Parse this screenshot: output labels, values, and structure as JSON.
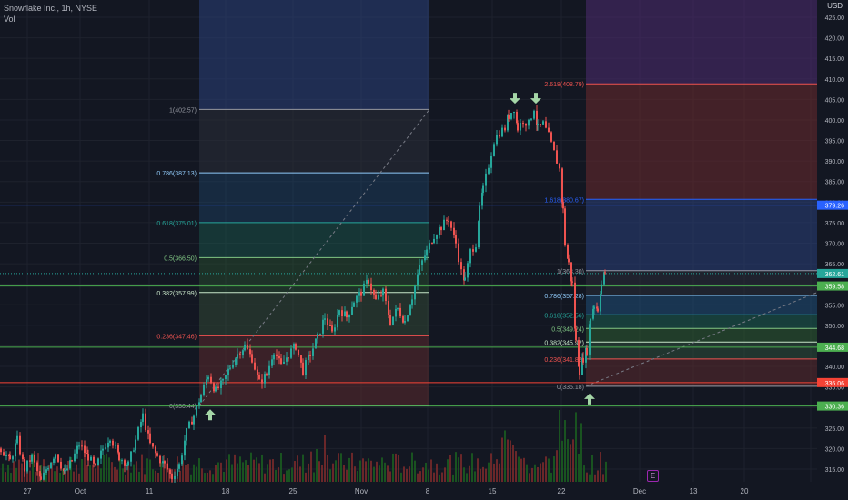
{
  "header": {
    "symbol_line": "Snowflake Inc., 1h, NYSE",
    "volume_label": "Vol"
  },
  "currency_label": "USD",
  "earnings_badge": "E",
  "chart_data": {
    "type": "candlestick",
    "title": "Snowflake Inc., 1h, NYSE",
    "x_ticks": [
      "27",
      "Oct",
      "11",
      "18",
      "25",
      "Nov",
      "8",
      "15",
      "22",
      "Dec",
      "13",
      "20"
    ],
    "y_ticks": [
      315,
      320,
      325,
      330,
      335,
      340,
      345,
      350,
      355,
      360,
      365,
      370,
      375,
      380,
      385,
      390,
      395,
      400,
      405,
      410,
      415,
      420,
      425
    ],
    "ylim": [
      311.5,
      428
    ],
    "colors": {
      "up": "#26a69a",
      "down": "#ef5350",
      "background": "#131722",
      "grid": "#1e222d"
    },
    "price_path": [
      [
        0,
        320
      ],
      [
        10,
        317
      ],
      [
        18,
        322
      ],
      [
        26,
        315
      ],
      [
        34,
        318
      ],
      [
        44,
        312
      ],
      [
        52,
        316
      ],
      [
        60,
        319
      ],
      [
        70,
        314
      ],
      [
        78,
        317
      ],
      [
        86,
        321
      ],
      [
        96,
        318
      ],
      [
        104,
        315
      ],
      [
        112,
        320
      ],
      [
        120,
        323
      ],
      [
        130,
        318
      ],
      [
        140,
        316
      ],
      [
        148,
        322
      ],
      [
        156,
        328
      ],
      [
        164,
        321
      ],
      [
        172,
        318
      ],
      [
        180,
        316
      ],
      [
        188,
        313
      ],
      [
        196,
        316
      ],
      [
        204,
        324
      ],
      [
        212,
        328
      ],
      [
        220,
        333
      ],
      [
        228,
        338
      ],
      [
        236,
        334
      ],
      [
        244,
        336
      ],
      [
        252,
        340
      ],
      [
        260,
        343
      ],
      [
        268,
        345
      ],
      [
        276,
        342
      ],
      [
        284,
        336
      ],
      [
        292,
        338
      ],
      [
        300,
        344
      ],
      [
        308,
        340
      ],
      [
        316,
        343
      ],
      [
        324,
        345
      ],
      [
        332,
        339
      ],
      [
        340,
        343
      ],
      [
        348,
        347
      ],
      [
        356,
        352
      ],
      [
        364,
        348
      ],
      [
        372,
        354
      ],
      [
        380,
        352
      ],
      [
        388,
        356
      ],
      [
        396,
        358
      ],
      [
        404,
        361
      ],
      [
        412,
        356
      ],
      [
        420,
        358
      ],
      [
        428,
        351
      ],
      [
        436,
        354
      ],
      [
        444,
        351
      ],
      [
        452,
        357
      ],
      [
        460,
        364
      ],
      [
        468,
        368
      ],
      [
        476,
        372
      ],
      [
        484,
        374
      ],
      [
        492,
        376
      ],
      [
        500,
        370
      ],
      [
        506,
        363
      ],
      [
        510,
        361
      ],
      [
        516,
        368
      ],
      [
        522,
        370
      ],
      [
        526,
        378
      ],
      [
        530,
        383
      ],
      [
        536,
        389
      ],
      [
        542,
        395
      ],
      [
        548,
        397
      ],
      [
        554,
        398
      ],
      [
        558,
        401
      ],
      [
        564,
        403
      ],
      [
        568,
        398
      ],
      [
        574,
        400
      ],
      [
        580,
        399
      ],
      [
        586,
        403
      ],
      [
        590,
        398
      ],
      [
        596,
        399
      ],
      [
        602,
        396
      ],
      [
        608,
        392
      ],
      [
        614,
        388
      ],
      [
        618,
        378
      ],
      [
        620,
        370
      ],
      [
        624,
        365
      ],
      [
        628,
        360
      ],
      [
        632,
        346
      ],
      [
        636,
        339
      ],
      [
        640,
        342
      ],
      [
        644,
        344
      ],
      [
        648,
        352
      ],
      [
        652,
        355
      ],
      [
        656,
        354
      ],
      [
        660,
        360
      ],
      [
        664,
        363
      ],
      [
        666,
        362.61
      ]
    ],
    "volume_bars": "approximate, rendered as green/red histogram at bottom",
    "fib_retracement_left": {
      "levels": [
        {
          "ratio": "1",
          "price": 402.57,
          "label": "1(402.57)"
        },
        {
          "ratio": "0.786",
          "price": 387.13,
          "label": "0.786(387.13)"
        },
        {
          "ratio": "0.618",
          "price": 375.01,
          "label": "0.618(375.01)"
        },
        {
          "ratio": "0.5",
          "price": 366.5,
          "label": "0.5(366.50)"
        },
        {
          "ratio": "0.382",
          "price": 357.99,
          "label": "0.382(357.99)"
        },
        {
          "ratio": "0.236",
          "price": 347.46,
          "label": "0.236(347.46)"
        },
        {
          "ratio": "0",
          "price": 330.44,
          "label": "0(330.44)"
        }
      ]
    },
    "fib_extension_right": {
      "levels": [
        {
          "ratio": "2.618",
          "price": 408.79,
          "label": "2.618(408.79)"
        },
        {
          "ratio": "1.618",
          "price": 380.67,
          "label": "1.618(380.67)"
        },
        {
          "ratio": "1",
          "price": 363.3,
          "label": "1(363.30)"
        },
        {
          "ratio": "0.786",
          "price": 357.28,
          "label": "0.786(357.28)"
        },
        {
          "ratio": "0.618",
          "price": 352.56,
          "label": "0.618(352.56)"
        },
        {
          "ratio": "0.5",
          "price": 349.24,
          "label": "0.5(349.24)"
        },
        {
          "ratio": "0.382",
          "price": 345.92,
          "label": "0.382(345.92)"
        },
        {
          "ratio": "0.236",
          "price": 341.82,
          "label": "0.236(341.82)"
        },
        {
          "ratio": "0",
          "price": 335.18,
          "label": "0(335.18)"
        }
      ]
    },
    "horizontal_lines": [
      {
        "price": 379.26,
        "color": "#2962ff",
        "label": "379.26"
      },
      {
        "price": 359.58,
        "color": "#4caf50",
        "label": "359.58"
      },
      {
        "price": 344.68,
        "color": "#4caf50",
        "label": "344.68"
      },
      {
        "price": 336.06,
        "color": "#f44336",
        "label": "336.06"
      },
      {
        "price": 330.36,
        "color": "#4caf50",
        "label": "330.36"
      }
    ],
    "current_price": {
      "price": 362.61,
      "label": "362.61"
    },
    "markers": [
      {
        "type": "up-arrow",
        "near_price": 330.44
      },
      {
        "type": "down-arrow",
        "near_price": 403.5
      },
      {
        "type": "down-arrow",
        "near_price": 403.5
      },
      {
        "type": "up-arrow",
        "near_price": 335.18
      }
    ]
  }
}
